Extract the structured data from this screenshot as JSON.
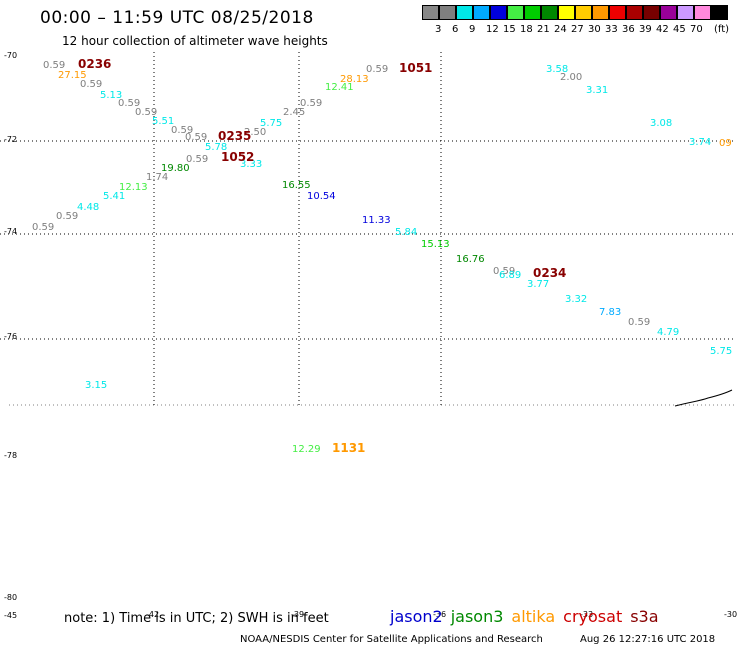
{
  "header": {
    "title": "00:00 – 11:59 UTC 08/25/2018",
    "subtitle": "12 hour collection of altimeter wave heights"
  },
  "legend": {
    "unit_label": "(ft)",
    "swatches": [
      {
        "value": "",
        "color": "#888888"
      },
      {
        "value": "3",
        "color": "#7f7f7f"
      },
      {
        "value": "6",
        "color": "#00e8e8"
      },
      {
        "value": "9",
        "color": "#00aaff"
      },
      {
        "value": "12",
        "color": "#0000dd"
      },
      {
        "value": "15",
        "color": "#44ee44"
      },
      {
        "value": "18",
        "color": "#00cc00"
      },
      {
        "value": "21",
        "color": "#008800"
      },
      {
        "value": "24",
        "color": "#ffff00"
      },
      {
        "value": "27",
        "color": "#ffcc00"
      },
      {
        "value": "30",
        "color": "#ff9900"
      },
      {
        "value": "33",
        "color": "#ee0000"
      },
      {
        "value": "36",
        "color": "#aa0000"
      },
      {
        "value": "39",
        "color": "#770000"
      },
      {
        "value": "42",
        "color": "#990099"
      },
      {
        "value": "45",
        "color": "#cc99ff"
      },
      {
        "value": "70",
        "color": "#ff88dd"
      },
      {
        "value": "",
        "color": "#000000"
      }
    ]
  },
  "axes": {
    "lat_ticks": [
      "-70",
      "-72",
      "-74",
      "-76",
      "-78",
      "-80"
    ],
    "lon_ticks": [
      "-45",
      "-42",
      "-39",
      "-36",
      "-33",
      "-30"
    ]
  },
  "observations": [
    {
      "text": "0.59",
      "color": "#7f7f7f"
    },
    {
      "text": "27.15",
      "color": "#ff9900"
    },
    {
      "text": "0.59",
      "color": "#7f7f7f"
    },
    {
      "text": "5.13",
      "color": "#00e8e8"
    },
    {
      "text": "0.59",
      "color": "#7f7f7f"
    },
    {
      "text": "0.59",
      "color": "#7f7f7f"
    },
    {
      "text": "5.51",
      "color": "#00e8e8"
    },
    {
      "text": "0.59",
      "color": "#7f7f7f"
    },
    {
      "text": "0.59",
      "color": "#7f7f7f"
    },
    {
      "text": "5.78",
      "color": "#00e8e8"
    },
    {
      "text": "2.50",
      "color": "#7f7f7f"
    },
    {
      "text": "5.75",
      "color": "#00e8e8"
    },
    {
      "text": "2.45",
      "color": "#7f7f7f"
    },
    {
      "text": "0.59",
      "color": "#7f7f7f"
    },
    {
      "text": "12.41",
      "color": "#44ee44"
    },
    {
      "text": "28.13",
      "color": "#ff9900"
    },
    {
      "text": "0.59",
      "color": "#7f7f7f"
    },
    {
      "text": "3.58",
      "color": "#00e8e8"
    },
    {
      "text": "2.00",
      "color": "#7f7f7f"
    },
    {
      "text": "3.31",
      "color": "#00e8e8"
    },
    {
      "text": "3.08",
      "color": "#00e8e8"
    },
    {
      "text": "3.74",
      "color": "#00e8e8"
    },
    {
      "text": "09",
      "color": "#ff9900"
    },
    {
      "text": "0.59",
      "color": "#7f7f7f"
    },
    {
      "text": "3.33",
      "color": "#00e8e8"
    },
    {
      "text": "19.80",
      "color": "#008800"
    },
    {
      "text": "1.74",
      "color": "#7f7f7f"
    },
    {
      "text": "12.13",
      "color": "#44ee44"
    },
    {
      "text": "5.41",
      "color": "#00e8e8"
    },
    {
      "text": "4.48",
      "color": "#00e8e8"
    },
    {
      "text": "0.59",
      "color": "#7f7f7f"
    },
    {
      "text": "0.59",
      "color": "#7f7f7f"
    },
    {
      "text": "16.55",
      "color": "#008800"
    },
    {
      "text": "10.54",
      "color": "#0000dd"
    },
    {
      "text": "11.33",
      "color": "#0000dd"
    },
    {
      "text": "5.84",
      "color": "#00e8e8"
    },
    {
      "text": "15.13",
      "color": "#00cc00"
    },
    {
      "text": "16.76",
      "color": "#008800"
    },
    {
      "text": "0.59",
      "color": "#7f7f7f"
    },
    {
      "text": "6.89",
      "color": "#00e8e8"
    },
    {
      "text": "3.77",
      "color": "#00e8e8"
    },
    {
      "text": "3.32",
      "color": "#00e8e8"
    },
    {
      "text": "7.83",
      "color": "#00aaff"
    },
    {
      "text": "0.59",
      "color": "#7f7f7f"
    },
    {
      "text": "4.79",
      "color": "#00e8e8"
    },
    {
      "text": "5.75",
      "color": "#00e8e8"
    },
    {
      "text": "3.15",
      "color": "#00e8e8"
    },
    {
      "text": "12.29",
      "color": "#44ee44"
    }
  ],
  "pass_times": [
    {
      "text": "0236",
      "color": "#880000"
    },
    {
      "text": "1051",
      "color": "#880000"
    },
    {
      "text": "0235",
      "color": "#880000"
    },
    {
      "text": "1052",
      "color": "#880000"
    },
    {
      "text": "0234",
      "color": "#880000"
    },
    {
      "text": "1131",
      "color": "#ff9900"
    }
  ],
  "note": "note:  1) Time is in UTC;  2) SWH is in feet",
  "satellites": [
    {
      "name": "jason2",
      "color": "#0000cc"
    },
    {
      "name": "jason3",
      "color": "#008800"
    },
    {
      "name": "altika",
      "color": "#ff9900"
    },
    {
      "name": "cryosat",
      "color": "#cc0000"
    },
    {
      "name": "s3a",
      "color": "#880000"
    }
  ],
  "footer": {
    "org": "NOAA/NESDIS Center for Satellite Applications and Research",
    "timestamp": "Aug 26 12:27:16 UTC 2018"
  }
}
